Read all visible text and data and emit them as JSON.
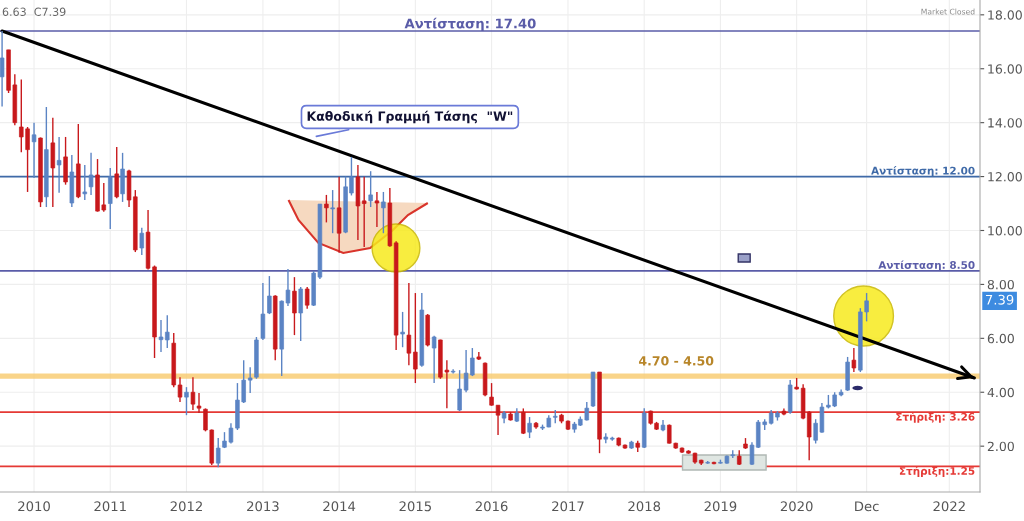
{
  "chart_data": {
    "type": "candlestick",
    "x": [
      "2009-08",
      "2009-09",
      "2009-10",
      "2009-11",
      "2009-12",
      "2010-01",
      "2010-02",
      "2010-03",
      "2010-04",
      "2010-05",
      "2010-06",
      "2010-07",
      "2010-08",
      "2010-09",
      "2010-10",
      "2010-11",
      "2010-12",
      "2011-01",
      "2011-02",
      "2011-03",
      "2011-04",
      "2011-05",
      "2011-06",
      "2011-07",
      "2011-08",
      "2011-09",
      "2011-10",
      "2011-11",
      "2011-12",
      "2012-01",
      "2012-02",
      "2012-03",
      "2012-04",
      "2012-05",
      "2012-06",
      "2012-07",
      "2012-08",
      "2012-09",
      "2012-10",
      "2012-11",
      "2012-12",
      "2013-01",
      "2013-02",
      "2013-03",
      "2013-04",
      "2013-05",
      "2013-06",
      "2013-07",
      "2013-08",
      "2013-09",
      "2013-10",
      "2013-11",
      "2013-12",
      "2014-01",
      "2014-02",
      "2014-03",
      "2014-04",
      "2014-05",
      "2014-06",
      "2014-07",
      "2014-08",
      "2014-09",
      "2014-10",
      "2014-11",
      "2014-12",
      "2015-01",
      "2015-02",
      "2015-03",
      "2015-04",
      "2015-05",
      "2015-06",
      "2015-07",
      "2015-08",
      "2015-09",
      "2015-10",
      "2015-11",
      "2015-12",
      "2016-01",
      "2016-02",
      "2016-03",
      "2016-04",
      "2016-05",
      "2016-06",
      "2016-07",
      "2016-08",
      "2016-09",
      "2016-10",
      "2016-11",
      "2016-12",
      "2017-01",
      "2017-02",
      "2017-03",
      "2017-04",
      "2017-05",
      "2017-06",
      "2017-07",
      "2017-08",
      "2017-09",
      "2017-10",
      "2017-11",
      "2017-12",
      "2018-01",
      "2018-02",
      "2018-03",
      "2018-04",
      "2018-05",
      "2018-06",
      "2018-07",
      "2018-08",
      "2018-09",
      "2018-10",
      "2018-11",
      "2018-12",
      "2019-01",
      "2019-02",
      "2019-03",
      "2019-04",
      "2019-05",
      "2019-06",
      "2019-07",
      "2019-08",
      "2019-09",
      "2019-10",
      "2019-11",
      "2019-12",
      "2020-01",
      "2020-02",
      "2020-03",
      "2020-04",
      "2020-05",
      "2020-06",
      "2020-07",
      "2020-08",
      "2020-09",
      "2020-10",
      "2020-11",
      "2020-12"
    ],
    "ohlc": [
      [
        15.7,
        17.4,
        14.6,
        16.4
      ],
      [
        16.7,
        16.7,
        15.1,
        15.2
      ],
      [
        15.4,
        15.8,
        13.9,
        14.0
      ],
      [
        13.84,
        15.6,
        12.9,
        13.47
      ],
      [
        13.77,
        13.84,
        11.43,
        13.0
      ],
      [
        13.29,
        14.0,
        11.95,
        13.55
      ],
      [
        13.43,
        13.45,
        10.87,
        11.06
      ],
      [
        11.25,
        14.58,
        10.87,
        13.0
      ],
      [
        13.25,
        14.18,
        10.87,
        12.32
      ],
      [
        12.43,
        13.47,
        11.4,
        12.6
      ],
      [
        12.73,
        13.47,
        11.7,
        11.8
      ],
      [
        11.02,
        12.8,
        10.87,
        12.17
      ],
      [
        12.47,
        13.95,
        11.2,
        11.25
      ],
      [
        11.36,
        12.43,
        11.13,
        11.43
      ],
      [
        11.62,
        12.88,
        11.32,
        12.06
      ],
      [
        12.06,
        12.65,
        10.7,
        10.72
      ],
      [
        10.95,
        11.76,
        10.7,
        10.76
      ],
      [
        11.0,
        12.32,
        10.06,
        11.99
      ],
      [
        12.1,
        13.1,
        11.2,
        11.25
      ],
      [
        11.36,
        12.88,
        11.06,
        12.28
      ],
      [
        12.21,
        12.25,
        10.87,
        11.13
      ],
      [
        11.25,
        11.5,
        9.2,
        9.28
      ],
      [
        9.35,
        10.1,
        9.09,
        9.9
      ],
      [
        9.94,
        10.76,
        8.55,
        8.6
      ],
      [
        8.65,
        8.7,
        5.27,
        6.05
      ],
      [
        5.95,
        6.68,
        5.49,
        6.05
      ],
      [
        5.94,
        6.86,
        5.64,
        6.23
      ],
      [
        5.82,
        6.2,
        4.19,
        4.27
      ],
      [
        4.27,
        4.56,
        3.64,
        3.82
      ],
      [
        3.82,
        4.19,
        3.15,
        4.0
      ],
      [
        4.0,
        4.56,
        3.34,
        3.56
      ],
      [
        3.49,
        3.97,
        3.23,
        3.41
      ],
      [
        3.37,
        3.4,
        2.55,
        2.6
      ],
      [
        2.6,
        2.62,
        1.3,
        1.37
      ],
      [
        1.37,
        2.3,
        1.22,
        1.93
      ],
      [
        1.96,
        2.52,
        1.93,
        2.19
      ],
      [
        2.15,
        2.85,
        2.1,
        2.67
      ],
      [
        2.67,
        4.34,
        2.6,
        3.71
      ],
      [
        3.64,
        5.19,
        3.6,
        4.45
      ],
      [
        4.45,
        4.93,
        3.97,
        4.53
      ],
      [
        4.56,
        6.05,
        4.5,
        5.94
      ],
      [
        6.0,
        8.05,
        5.94,
        6.9
      ],
      [
        6.94,
        8.31,
        6.9,
        7.57
      ],
      [
        7.57,
        7.6,
        5.19,
        5.6
      ],
      [
        5.6,
        7.4,
        4.6,
        7.38
      ],
      [
        7.31,
        8.57,
        7.2,
        7.79
      ],
      [
        7.75,
        8.27,
        6.12,
        6.94
      ],
      [
        6.94,
        7.9,
        5.9,
        7.83
      ],
      [
        7.83,
        7.9,
        7.1,
        7.23
      ],
      [
        7.23,
        8.5,
        7.2,
        8.42
      ],
      [
        8.27,
        10.98,
        8.2,
        10.98
      ],
      [
        10.98,
        11.32,
        10.3,
        10.84
      ],
      [
        10.8,
        11.5,
        9.9,
        10.84
      ],
      [
        10.84,
        11.99,
        9.17,
        9.9
      ],
      [
        9.94,
        12.0,
        9.9,
        11.62
      ],
      [
        11.39,
        12.73,
        11.3,
        11.99
      ],
      [
        11.99,
        12.43,
        9.65,
        10.91
      ],
      [
        11.1,
        11.99,
        9.39,
        11.0
      ],
      [
        11.1,
        12.2,
        10.87,
        11.32
      ],
      [
        11.1,
        11.43,
        10.13,
        11.02
      ],
      [
        10.84,
        11.43,
        9.9,
        11.06
      ],
      [
        11.02,
        11.58,
        9.4,
        9.43
      ],
      [
        9.54,
        9.6,
        5.57,
        6.12
      ],
      [
        6.16,
        6.98,
        5.67,
        6.23
      ],
      [
        6.12,
        8.05,
        5.0,
        5.45
      ],
      [
        5.49,
        7.68,
        4.34,
        4.86
      ],
      [
        5.0,
        7.68,
        4.95,
        7.05
      ],
      [
        6.86,
        6.9,
        5.7,
        5.75
      ],
      [
        5.64,
        6.1,
        4.34,
        6.05
      ],
      [
        5.94,
        5.95,
        4.5,
        4.56
      ],
      [
        4.82,
        5.19,
        3.41,
        4.75
      ],
      [
        4.75,
        4.85,
        4.7,
        4.78
      ],
      [
        3.34,
        4.82,
        3.3,
        4.12
      ],
      [
        4.08,
        5.57,
        4.0,
        4.71
      ],
      [
        4.64,
        5.64,
        4.6,
        5.27
      ],
      [
        5.31,
        5.49,
        5.2,
        5.23
      ],
      [
        5.08,
        5.1,
        3.85,
        3.9
      ],
      [
        3.82,
        4.34,
        3.5,
        3.52
      ],
      [
        3.52,
        3.52,
        2.41,
        3.15
      ],
      [
        3.04,
        3.3,
        2.85,
        3.23
      ],
      [
        3.19,
        3.27,
        2.95,
        2.97
      ],
      [
        2.93,
        3.41,
        2.9,
        3.23
      ],
      [
        3.26,
        3.4,
        2.45,
        2.48
      ],
      [
        2.52,
        3.08,
        2.3,
        2.85
      ],
      [
        2.85,
        2.9,
        2.65,
        2.71
      ],
      [
        2.67,
        2.8,
        2.6,
        2.71
      ],
      [
        2.71,
        3.15,
        2.7,
        3.04
      ],
      [
        3.07,
        3.34,
        2.85,
        3.11
      ],
      [
        3.15,
        3.2,
        2.85,
        2.93
      ],
      [
        2.93,
        2.95,
        2.6,
        2.63
      ],
      [
        2.63,
        2.9,
        2.5,
        2.82
      ],
      [
        2.78,
        3.1,
        2.75,
        3.0
      ],
      [
        2.97,
        3.64,
        2.95,
        3.41
      ],
      [
        3.49,
        4.75,
        3.45,
        4.75
      ],
      [
        4.75,
        4.75,
        1.74,
        2.26
      ],
      [
        2.26,
        2.48,
        2.11,
        2.34
      ],
      [
        2.26,
        2.35,
        2.2,
        2.3
      ],
      [
        2.3,
        2.32,
        2.0,
        2.04
      ],
      [
        2.04,
        2.06,
        1.9,
        1.93
      ],
      [
        1.93,
        2.2,
        1.9,
        2.15
      ],
      [
        2.11,
        2.2,
        1.78,
        1.96
      ],
      [
        1.96,
        3.41,
        1.93,
        3.23
      ],
      [
        3.3,
        3.32,
        2.8,
        2.85
      ],
      [
        2.85,
        2.9,
        2.6,
        2.63
      ],
      [
        2.6,
        2.97,
        2.55,
        2.78
      ],
      [
        2.78,
        2.8,
        2.1,
        2.11
      ],
      [
        2.11,
        2.13,
        1.9,
        1.93
      ],
      [
        1.93,
        1.95,
        1.75,
        1.78
      ],
      [
        1.82,
        1.85,
        1.72,
        1.74
      ],
      [
        1.74,
        1.76,
        1.35,
        1.41
      ],
      [
        1.48,
        1.5,
        1.3,
        1.37
      ],
      [
        1.37,
        1.45,
        1.35,
        1.4
      ],
      [
        1.4,
        1.42,
        1.33,
        1.35
      ],
      [
        1.37,
        1.5,
        1.35,
        1.4
      ],
      [
        1.37,
        1.65,
        1.35,
        1.63
      ],
      [
        1.65,
        1.85,
        1.56,
        1.68
      ],
      [
        1.63,
        1.85,
        1.3,
        1.33
      ],
      [
        2.08,
        2.3,
        1.9,
        1.93
      ],
      [
        1.33,
        2.15,
        1.3,
        2.04
      ],
      [
        1.96,
        2.97,
        1.93,
        2.89
      ],
      [
        2.8,
        3.0,
        2.6,
        2.9
      ],
      [
        2.85,
        3.34,
        2.8,
        3.23
      ],
      [
        3.08,
        3.3,
        2.95,
        3.23
      ],
      [
        3.3,
        3.4,
        3.15,
        3.19
      ],
      [
        3.26,
        4.45,
        3.2,
        4.27
      ],
      [
        4.19,
        4.53,
        4.1,
        4.12
      ],
      [
        4.15,
        4.3,
        3.0,
        3.04
      ],
      [
        3.26,
        3.3,
        1.48,
        2.34
      ],
      [
        2.22,
        3.0,
        2.1,
        2.85
      ],
      [
        2.52,
        3.6,
        2.5,
        3.45
      ],
      [
        3.45,
        3.9,
        3.4,
        3.52
      ],
      [
        3.49,
        4.0,
        3.45,
        3.9
      ],
      [
        3.9,
        4.1,
        3.85,
        4.0
      ],
      [
        4.08,
        5.31,
        4.05,
        5.12
      ],
      [
        5.19,
        5.64,
        4.75,
        4.9
      ],
      [
        4.82,
        7.12,
        4.75,
        6.98
      ],
      [
        6.98,
        7.68,
        6.63,
        7.39
      ]
    ],
    "colors": [
      "#5b84c4",
      "#c8191c",
      "#c8191c",
      "#c8191c",
      "#c8191c",
      "#5b84c4",
      "#c8191c",
      "#5b84c4",
      "#c8191c",
      "#5b84c4",
      "#c8191c",
      "#5b84c4",
      "#c8191c",
      "#5b84c4",
      "#5b84c4",
      "#c8191c",
      "#c8191c",
      "#5b84c4",
      "#c8191c",
      "#5b84c4",
      "#c8191c",
      "#c8191c",
      "#5b84c4",
      "#c8191c",
      "#c8191c",
      "#5b84c4",
      "#5b84c4",
      "#c8191c",
      "#c8191c",
      "#5b84c4",
      "#c8191c",
      "#c8191c",
      "#c8191c",
      "#c8191c",
      "#5b84c4",
      "#5b84c4",
      "#5b84c4",
      "#5b84c4",
      "#5b84c4",
      "#5b84c4",
      "#5b84c4",
      "#5b84c4",
      "#5b84c4",
      "#c8191c",
      "#5b84c4",
      "#5b84c4",
      "#c8191c",
      "#5b84c4",
      "#c8191c",
      "#5b84c4",
      "#5b84c4",
      "#c8191c",
      "#5b84c4",
      "#c8191c",
      "#5b84c4",
      "#5b84c4",
      "#c8191c",
      "#c8191c",
      "#5b84c4",
      "#c8191c",
      "#5b84c4",
      "#c8191c",
      "#c8191c",
      "#5b84c4",
      "#c8191c",
      "#c8191c",
      "#5b84c4",
      "#c8191c",
      "#5b84c4",
      "#c8191c",
      "#c8191c",
      "#5b84c4",
      "#5b84c4",
      "#5b84c4",
      "#5b84c4",
      "#c8191c",
      "#c8191c",
      "#c8191c",
      "#c8191c",
      "#5b84c4",
      "#c8191c",
      "#5b84c4",
      "#c8191c",
      "#5b84c4",
      "#c8191c",
      "#5b84c4",
      "#5b84c4",
      "#5b84c4",
      "#c8191c",
      "#c8191c",
      "#5b84c4",
      "#5b84c4",
      "#5b84c4",
      "#5b84c4",
      "#c8191c",
      "#5b84c4",
      "#5b84c4",
      "#c8191c",
      "#c8191c",
      "#5b84c4",
      "#c8191c",
      "#5b84c4",
      "#c8191c",
      "#c8191c",
      "#5b84c4",
      "#c8191c",
      "#c8191c",
      "#c8191c",
      "#c8191c",
      "#c8191c",
      "#c8191c",
      "#5b84c4",
      "#c8191c",
      "#5b84c4",
      "#5b84c4",
      "#5b84c4",
      "#c8191c",
      "#c8191c",
      "#5b84c4",
      "#5b84c4",
      "#5b84c4",
      "#5b84c4",
      "#5b84c4",
      "#c8191c",
      "#5b84c4",
      "#c8191c",
      "#c8191c",
      "#c8191c",
      "#5b84c4",
      "#5b84c4",
      "#5b84c4",
      "#5b84c4",
      "#5b84c4",
      "#5b84c4",
      "#c8191c",
      "#5b84c4",
      "#5b84c4"
    ],
    "series": [
      {
        "type": "line",
        "x": [
          "2009-08",
          "2022-05"
        ],
        "values": [
          17.4,
          4.53
        ],
        "color": "#000000"
      }
    ],
    "xlim": [
      "2009-07-22",
      "2022-05-28"
    ],
    "xticks": [
      {
        "value": "2010",
        "label": "2010"
      },
      {
        "value": "2011",
        "label": "2011"
      },
      {
        "value": "2012",
        "label": "2012"
      },
      {
        "value": "2013",
        "label": "2013"
      },
      {
        "value": "2014",
        "label": "2014"
      },
      {
        "value": "2015",
        "label": "2015"
      },
      {
        "value": "2016",
        "label": "2016"
      },
      {
        "value": "2017",
        "label": "2017"
      },
      {
        "value": "2018",
        "label": "2018"
      },
      {
        "value": "2019",
        "label": "2019"
      },
      {
        "value": "2020",
        "label": "2020"
      },
      {
        "value": "2020-12",
        "label": "Dec"
      },
      {
        "value": "2022",
        "label": "2022"
      }
    ],
    "ylim": [
      0.3,
      18.55
    ],
    "yticks": [
      {
        "value": 2,
        "label": "2.00"
      },
      {
        "value": 4,
        "label": "4.00"
      },
      {
        "value": 6,
        "label": "6.00"
      },
      {
        "value": 8,
        "label": "8.00"
      },
      {
        "value": 10,
        "label": "10.00"
      },
      {
        "value": 12,
        "label": "12.00"
      },
      {
        "value": 14,
        "label": "14.00"
      },
      {
        "value": 16,
        "label": "16.00"
      },
      {
        "value": 18,
        "label": "18.00"
      }
    ],
    "ref_lines": [
      {
        "axis": "y",
        "value": 17.4,
        "label": "Αντίσταση: 17.40",
        "color": "#5a5ca8"
      },
      {
        "axis": "y",
        "value": 12.0,
        "label": "Αντίσταση: 12.00",
        "color": "#3f6aa8"
      },
      {
        "axis": "y",
        "value": 8.5,
        "label": "Αντίσταση: 8.50",
        "color": "#5a5ca8"
      },
      {
        "axis": "y",
        "value": 3.26,
        "label": "Στήριξη: 3.26",
        "color": "#e53935"
      },
      {
        "axis": "y",
        "value": 1.25,
        "label": "Στήριξη:1.25",
        "color": "#e53935"
      }
    ],
    "bands": [
      {
        "axis": "y",
        "from": 4.5,
        "to": 4.7,
        "label": "4.70 - 4.50",
        "color": "#f7c96b"
      }
    ],
    "annotations": [
      {
        "text": "Καθοδική Γραμμή Τάσης  \"W\"",
        "x": "2013-09",
        "y": 13.47
      },
      "6.63  C7.39",
      "Market Closed",
      "7.39"
    ],
    "grid": true,
    "legend": false
  }
}
